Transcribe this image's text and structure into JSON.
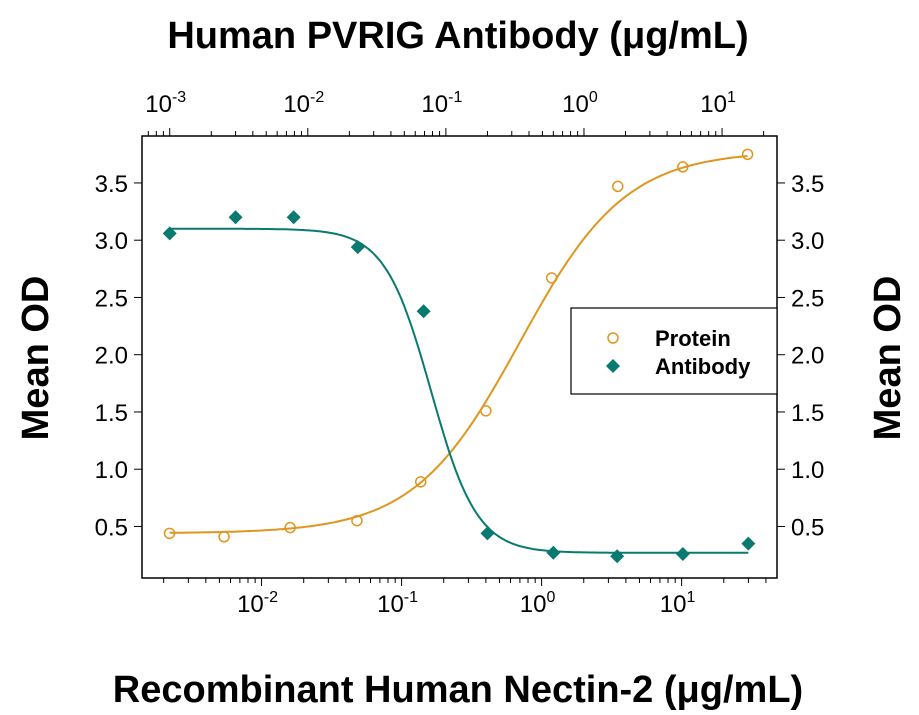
{
  "chart_data": {
    "type": "scatter",
    "title": "Human PVRIG Antibody (μg/mL)",
    "xlabel": "Recombinant Human Nectin-2 (μg/mL)",
    "ylabel": "Mean OD",
    "ylabel_right": "Mean OD",
    "x_scale": "log",
    "xlim": [
      0.0014,
      48
    ],
    "x2lim": [
      0.00063,
      25
    ],
    "ylim": [
      0.05,
      3.91
    ],
    "x_ticks": [
      {
        "v": 0.01,
        "b": "10",
        "e": "-2"
      },
      {
        "v": 0.1,
        "b": "10",
        "e": "-1"
      },
      {
        "v": 1,
        "b": "10",
        "e": "0"
      },
      {
        "v": 10,
        "b": "10",
        "e": "1"
      }
    ],
    "x2_ticks": [
      {
        "v": 0.001,
        "b": "10",
        "e": "-3"
      },
      {
        "v": 0.01,
        "b": "10",
        "e": "-2"
      },
      {
        "v": 0.1,
        "b": "10",
        "e": "-1"
      },
      {
        "v": 1,
        "b": "10",
        "e": "0"
      },
      {
        "v": 10,
        "b": "10",
        "e": "1"
      }
    ],
    "y_ticks": [
      "0.5",
      "1.0",
      "1.5",
      "2.0",
      "2.5",
      "3.0",
      "3.5"
    ],
    "legend_position": "right",
    "series": [
      {
        "name": "Protein",
        "axis": "bottom",
        "marker": "open-circle",
        "color": "#e0961e",
        "x": [
          0.0022,
          0.0054,
          0.016,
          0.048,
          0.137,
          0.4,
          1.18,
          3.5,
          10.2,
          29.6
        ],
        "y": [
          0.44,
          0.41,
          0.49,
          0.55,
          0.89,
          1.51,
          2.67,
          3.47,
          3.64,
          3.75
        ]
      },
      {
        "name": "Antibody",
        "axis": "top",
        "marker": "filled-diamond",
        "color": "#087a70",
        "x": [
          0.001,
          0.003,
          0.0079,
          0.023,
          0.069,
          0.2,
          0.6,
          1.74,
          5.2,
          15.5
        ],
        "y": [
          3.06,
          3.2,
          3.2,
          2.94,
          2.38,
          0.44,
          0.27,
          0.24,
          0.26,
          0.35
        ]
      }
    ]
  }
}
